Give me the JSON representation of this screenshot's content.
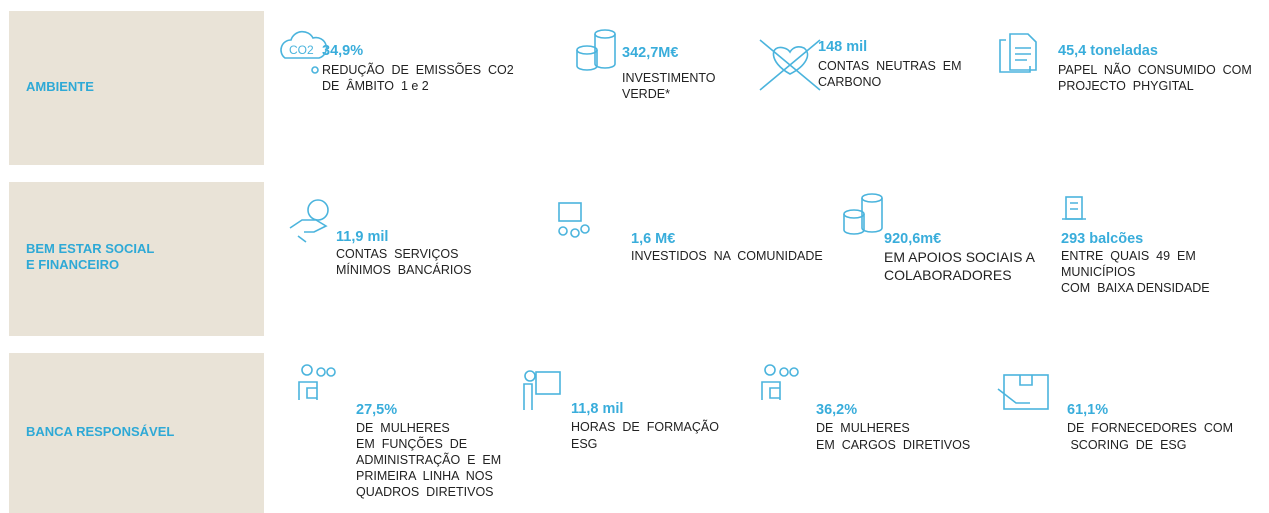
{
  "sections": [
    {
      "label": [
        "AMBIENTE"
      ],
      "items": [
        {
          "value": "34,9%",
          "lines": [
            "REDUÇÃO  DE  EMISSÕES  CO2",
            "DE  ÂMBITO  1 e 2"
          ]
        },
        {
          "value": "342,7M€",
          "lines": [
            "INVESTIMENTO",
            "VERDE*"
          ]
        },
        {
          "value": "148 mil",
          "lines": [
            "CONTAS  NEUTRAS  EM",
            "CARBONO"
          ]
        },
        {
          "value": "45,4 toneladas",
          "lines": [
            "PAPEL  NÃO  CONSUMIDO  COM",
            "PROJECTO  PHYGITAL"
          ]
        }
      ]
    },
    {
      "label": [
        "BEM ESTAR SOCIAL",
        "E FINANCEIRO"
      ],
      "items": [
        {
          "value": "11,9 mil",
          "lines": [
            "CONTAS  SERVIÇOS",
            "MÍNIMOS  BANCÁRIOS"
          ]
        },
        {
          "value": "1,6 M€",
          "lines": [
            "INVESTIDOS  NA  COMUNIDADE"
          ]
        },
        {
          "value": "920,6m€",
          "lines": [
            "EM APOIOS SOCIAIS A",
            "COLABORADORES"
          ]
        },
        {
          "value": "293 balcões",
          "lines": [
            "ENTRE  QUAIS  49  EM",
            "MUNICÍPIOS",
            "COM  BAIXA DENSIDADE"
          ]
        }
      ]
    },
    {
      "label": [
        "BANCA RESPONSÁVEL"
      ],
      "items": [
        {
          "value": "27,5%",
          "lines": [
            "DE  MULHERES",
            "EM  FUNÇÕES  DE",
            "ADMINISTRAÇÃO  E  EM",
            "PRIMEIRA  LINHA  NOS",
            "QUADROS  DIRETIVOS"
          ]
        },
        {
          "value": "11,8  mil",
          "lines": [
            "HORAS  DE  FORMAÇÃO",
            "ESG"
          ]
        },
        {
          "value": "36,2%",
          "lines": [
            "DE  MULHERES",
            "EM  CARGOS  DIRETIVOS"
          ]
        },
        {
          "value": "61,1%",
          "lines": [
            "DE  FORNECEDORES  COM",
            " SCORING  DE  ESG"
          ]
        }
      ]
    }
  ]
}
